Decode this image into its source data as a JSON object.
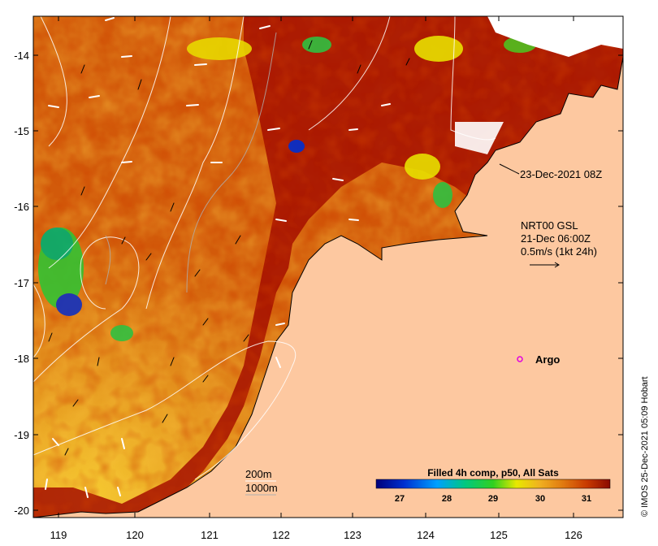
{
  "map": {
    "y_ticks": [
      "-14",
      "-15",
      "-16",
      "-17",
      "-18",
      "-19",
      "-20"
    ],
    "x_ticks": [
      "119",
      "120",
      "121",
      "122",
      "123",
      "124",
      "125",
      "126"
    ],
    "annotations": {
      "timestamp": "23-Dec-2021 08Z",
      "current_line1": "NRT00 GSL",
      "current_line2": "21-Dec 06:00Z",
      "current_line3": "0.5m/s (1kt 24h)",
      "argo": "Argo",
      "depth1": "200m",
      "depth2": "1000m"
    },
    "colorbar": {
      "title": "Filled 4h comp, p50, All Sats",
      "ticks": [
        "27",
        "28",
        "29",
        "30",
        "31"
      ],
      "range": [
        26.5,
        31.5
      ]
    },
    "credit": "© IMOS 25-Dec-2021 05:09 Hobart",
    "colors": {
      "land": "#fdc8a0",
      "sst_hot": "#a80e00",
      "sst_mid": "#d45a08",
      "sst_warm": "#f0b020"
    }
  }
}
